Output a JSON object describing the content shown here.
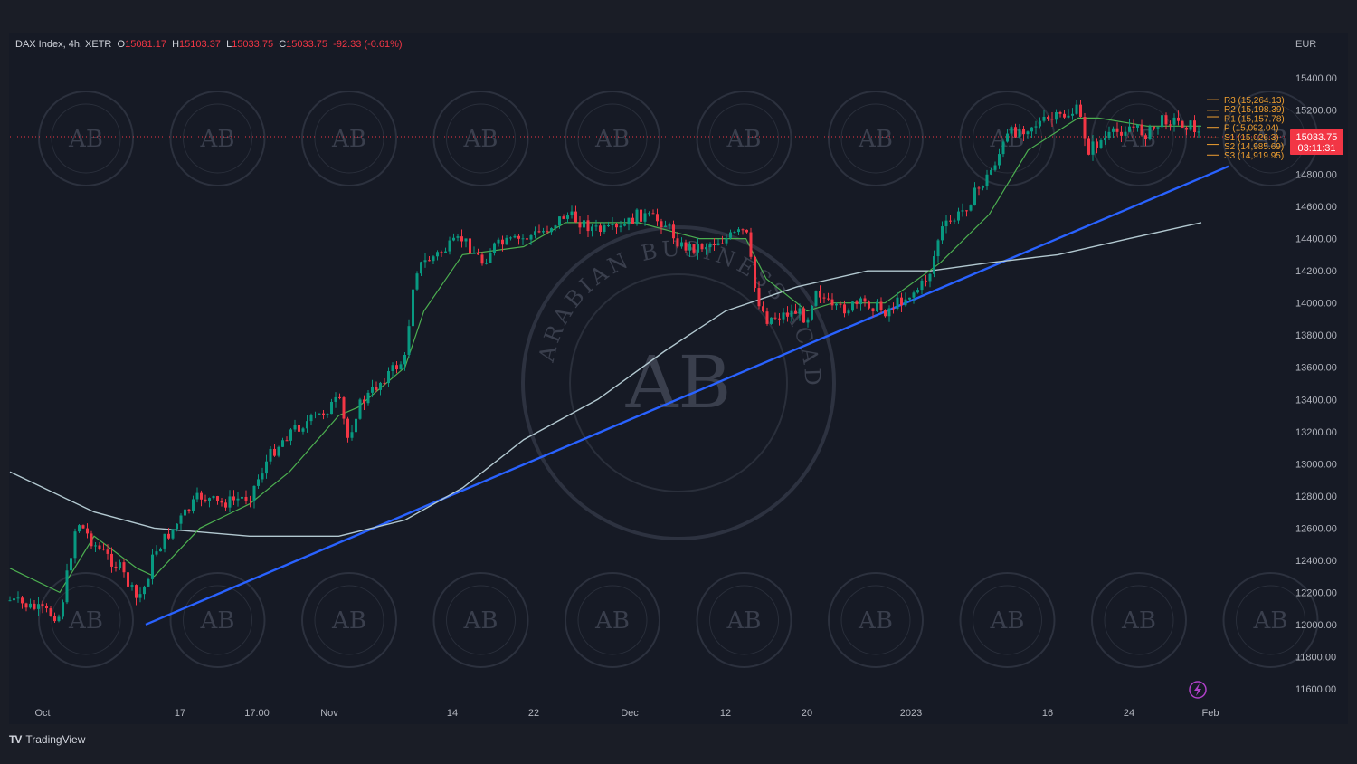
{
  "legend": {
    "symbol": "DAX Index, 4h, XETR",
    "open_label": "O",
    "open": "15081.17",
    "high_label": "H",
    "high": "15103.37",
    "low_label": "L",
    "low": "15033.75",
    "close_label": "C",
    "close": "15033.75",
    "change": "-92.33 (-0.61%)"
  },
  "brand": {
    "logo": "TV",
    "name": "TradingView"
  },
  "icons": {
    "lightning": "lightning-icon"
  },
  "colors": {
    "up": "#089981",
    "down": "#f23645",
    "trendline": "#2962ff",
    "ma_fast": "#4caf50",
    "ma_slow": "#b2c8d0",
    "pivot": "#f0a030",
    "price_tag": "#f23645"
  },
  "chart_data": {
    "type": "candlestick",
    "currency": "EUR",
    "y_ticks": [
      15400,
      15200,
      15000,
      14800,
      14600,
      14400,
      14200,
      14000,
      13800,
      13600,
      13400,
      13200,
      13000,
      12800,
      12600,
      12400,
      12200,
      12000,
      11800,
      11600
    ],
    "x_ticks": [
      "Oct",
      "17",
      "17:00",
      "Nov",
      "14",
      "22",
      "Dec",
      "12",
      "20",
      "2023",
      "16",
      "24",
      "Feb"
    ],
    "last_price": "15033.75",
    "countdown": "03:11:31",
    "pivots": [
      {
        "label": "R3 (15,264.13)",
        "value": 15264.13
      },
      {
        "label": "R2 (15,198.39)",
        "value": 15198.39
      },
      {
        "label": "R1 (15,157.78)",
        "value": 15157.78
      },
      {
        "label": "P (15,092.04)",
        "value": 15092.04
      },
      {
        "label": "S1 (15,026.3)",
        "value": 15026.3
      },
      {
        "label": "S2 (14,985.69)",
        "value": 14985.69
      },
      {
        "label": "S3 (14,919.95)",
        "value": 14919.95
      }
    ],
    "price_path": [
      [
        "Sep 29",
        12150
      ],
      [
        "Oct 3",
        12050
      ],
      [
        "Oct 5",
        12650
      ],
      [
        "Oct 7",
        12500
      ],
      [
        "Oct 10",
        12350
      ],
      [
        "Oct 12",
        12150
      ],
      [
        "Oct 13",
        12250
      ],
      [
        "Oct 14",
        12450
      ],
      [
        "Oct 17",
        12650
      ],
      [
        "Oct 19",
        12800
      ],
      [
        "Oct 21",
        12750
      ],
      [
        "Oct 24",
        12800
      ],
      [
        "Oct 26",
        13050
      ],
      [
        "Oct 28",
        13200
      ],
      [
        "Oct 31",
        13300
      ],
      [
        "Nov 2",
        13400
      ],
      [
        "Nov 3",
        13150
      ],
      [
        "Nov 4",
        13350
      ],
      [
        "Nov 7",
        13550
      ],
      [
        "Nov 9",
        13650
      ],
      [
        "Nov 10",
        14200
      ],
      [
        "Nov 11",
        14250
      ],
      [
        "Nov 15",
        14400
      ],
      [
        "Nov 17",
        14250
      ],
      [
        "Nov 18",
        14350
      ],
      [
        "Nov 21",
        14400
      ],
      [
        "Nov 23",
        14450
      ],
      [
        "Nov 25",
        14550
      ],
      [
        "Nov 28",
        14450
      ],
      [
        "Nov 30",
        14450
      ],
      [
        "Dec 2",
        14550
      ],
      [
        "Dec 5",
        14500
      ],
      [
        "Dec 7",
        14350
      ],
      [
        "Dec 9",
        14350
      ],
      [
        "Dec 12",
        14400
      ],
      [
        "Dec 14",
        14450
      ],
      [
        "Dec 15",
        14050
      ],
      [
        "Dec 16",
        13900
      ],
      [
        "Dec 19",
        13950
      ],
      [
        "Dec 20",
        13900
      ],
      [
        "Dec 21",
        14100
      ],
      [
        "Dec 23",
        13950
      ],
      [
        "Dec 27",
        14000
      ],
      [
        "Dec 29",
        13950
      ],
      [
        "Jan 2",
        14100
      ],
      [
        "Jan 3",
        14200
      ],
      [
        "Jan 4",
        14450
      ],
      [
        "Jan 6",
        14550
      ],
      [
        "Jan 9",
        14800
      ],
      [
        "Jan 11",
        15050
      ],
      [
        "Jan 13",
        15100
      ],
      [
        "Jan 16",
        15150
      ],
      [
        "Jan 18",
        15200
      ],
      [
        "Jan 19",
        14950
      ],
      [
        "Jan 20",
        15000
      ],
      [
        "Jan 23",
        15100
      ],
      [
        "Jan 25",
        15050
      ],
      [
        "Jan 27",
        15150
      ],
      [
        "Jan 30",
        15100
      ],
      [
        "Jan 31",
        15033.75
      ]
    ],
    "ma_fast": [
      [
        "Sep 29",
        12350
      ],
      [
        "Oct 3",
        12200
      ],
      [
        "Oct 7",
        12550
      ],
      [
        "Oct 12",
        12350
      ],
      [
        "Oct 14",
        12300
      ],
      [
        "Oct 19",
        12600
      ],
      [
        "Oct 24",
        12750
      ],
      [
        "Oct 28",
        12950
      ],
      [
        "Nov 2",
        13300
      ],
      [
        "Nov 4",
        13350
      ],
      [
        "Nov 9",
        13600
      ],
      [
        "Nov 11",
        13950
      ],
      [
        "Nov 15",
        14300
      ],
      [
        "Nov 21",
        14350
      ],
      [
        "Nov 25",
        14500
      ],
      [
        "Dec 2",
        14500
      ],
      [
        "Dec 9",
        14400
      ],
      [
        "Dec 14",
        14400
      ],
      [
        "Dec 16",
        14150
      ],
      [
        "Dec 20",
        13950
      ],
      [
        "Dec 23",
        14000
      ],
      [
        "Dec 29",
        14000
      ],
      [
        "Jan 4",
        14250
      ],
      [
        "Jan 9",
        14550
      ],
      [
        "Jan 13",
        14950
      ],
      [
        "Jan 18",
        15150
      ],
      [
        "Jan 20",
        15150
      ],
      [
        "Jan 25",
        15100
      ],
      [
        "Jan 31",
        15100
      ]
    ],
    "ma_slow": [
      [
        "Sep 29",
        12950
      ],
      [
        "Oct 7",
        12700
      ],
      [
        "Oct 14",
        12600
      ],
      [
        "Oct 24",
        12550
      ],
      [
        "Nov 2",
        12550
      ],
      [
        "Nov 9",
        12650
      ],
      [
        "Nov 15",
        12850
      ],
      [
        "Nov 21",
        13150
      ],
      [
        "Nov 28",
        13400
      ],
      [
        "Dec 5",
        13700
      ],
      [
        "Dec 12",
        13950
      ],
      [
        "Dec 19",
        14100
      ],
      [
        "Dec 27",
        14200
      ],
      [
        "Jan 3",
        14200
      ],
      [
        "Jan 9",
        14250
      ],
      [
        "Jan 16",
        14300
      ],
      [
        "Jan 23",
        14400
      ],
      [
        "Jan 31",
        14500
      ]
    ],
    "trendline": [
      [
        "Oct 13",
        12000
      ],
      [
        "Feb 3",
        14850
      ]
    ],
    "watermark": {
      "text": "ARABIAN BUSINESS ACADEMY",
      "initials": "AB"
    }
  }
}
